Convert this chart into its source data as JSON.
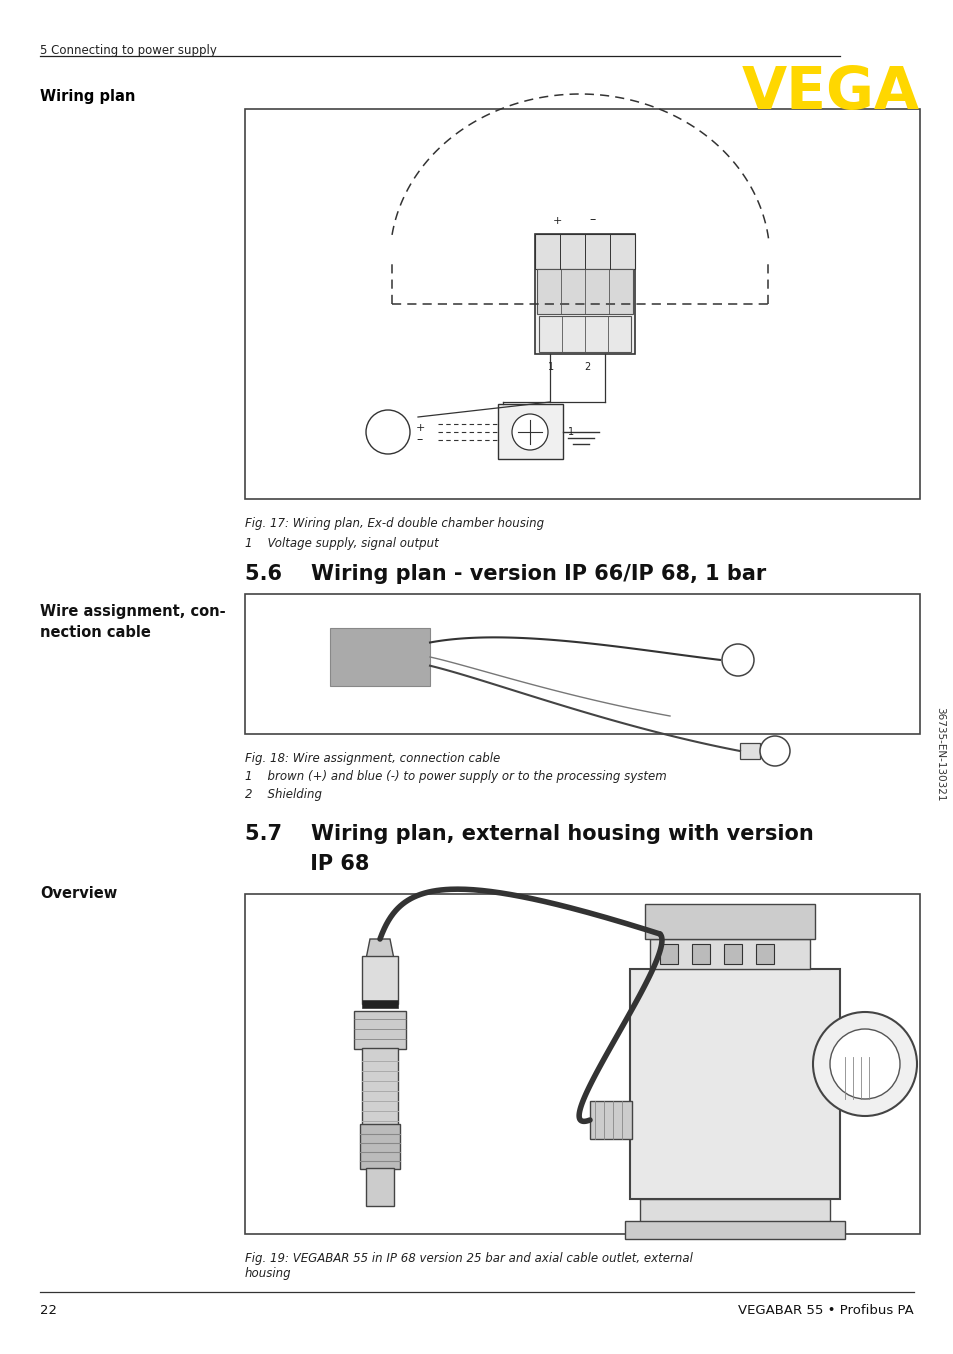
{
  "bg_color": "#ffffff",
  "header_text": "5 Connecting to power supply",
  "vega_color": "#FFD700",
  "vega_text": "VEGA",
  "section_57_title_line1": "5.7    Wiring plan, external housing with version",
  "section_57_title_line2": "         IP 68",
  "section_56_title": "5.6    Wiring plan - version IP 66/IP 68, 1 bar",
  "wiring_plan_label": "Wiring plan",
  "wire_assign_label": "Wire assignment, con-\nnection cable",
  "overview_label": "Overview",
  "fig17_caption": "Fig. 17: Wiring plan, Ex-d double chamber housing",
  "fig17_item1": "1    Voltage supply, signal output",
  "fig18_caption": "Fig. 18: Wire assignment, connection cable",
  "fig18_item1": "1    brown (+) and blue (-) to power supply or to the processing system",
  "fig18_item2": "2    Shielding",
  "fig19_caption": "Fig. 19: VEGABAR 55 in IP 68 version 25 bar and axial cable outlet, external\nhousing",
  "footer_page": "22",
  "footer_title": "VEGABAR 55 • Profibus PA",
  "sidebar_text": "36735-EN-130321"
}
